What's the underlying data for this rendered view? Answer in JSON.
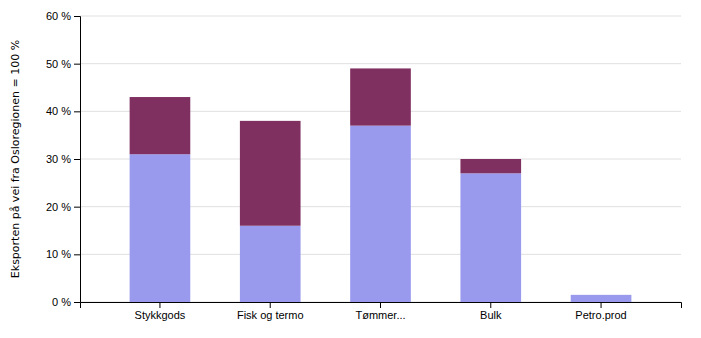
{
  "chart_data": {
    "type": "bar",
    "stacked": true,
    "categories": [
      "Stykkgods",
      "Fisk og termo",
      "Tømmer...",
      "Bulk",
      "Petro.prod"
    ],
    "series": [
      {
        "color": "#9999ee",
        "values": [
          31,
          16,
          37,
          27,
          1.5
        ]
      },
      {
        "color": "#7f3060",
        "values": [
          12,
          22,
          12,
          3,
          0
        ]
      }
    ],
    "ylabel": "Eksporten på vei fra Osloregionen = 100 %",
    "ylim": [
      0,
      60
    ],
    "yticks": [
      {
        "value": 0,
        "label": "0 %"
      },
      {
        "value": 10,
        "label": "10 %"
      },
      {
        "value": 20,
        "label": "20 %"
      },
      {
        "value": 30,
        "label": "30 %"
      },
      {
        "value": 40,
        "label": "40 %"
      },
      {
        "value": 50,
        "label": "50 %"
      },
      {
        "value": 60,
        "label": "60 %"
      }
    ],
    "grid": true
  }
}
